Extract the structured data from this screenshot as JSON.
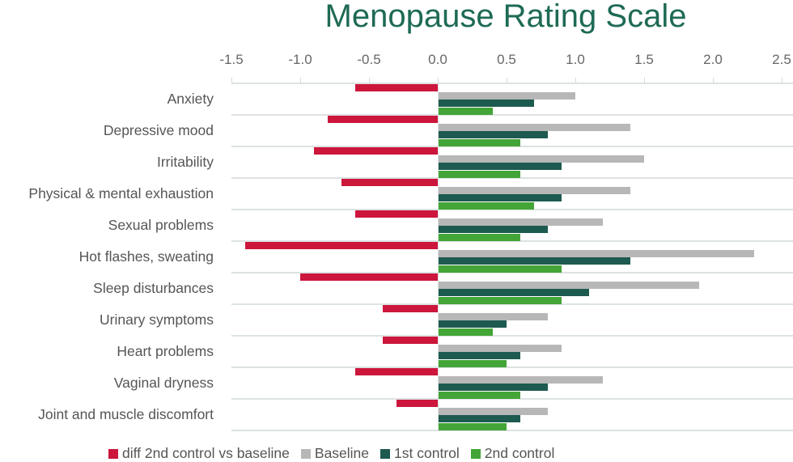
{
  "chart_data": {
    "type": "bar",
    "orientation": "horizontal",
    "title": "Menopause Rating Scale",
    "xlabel": "",
    "ylabel": "",
    "xlim": [
      -1.5,
      2.5
    ],
    "x_ticks": [
      "-1.5",
      "-1.0",
      "-0.5",
      "0.0",
      "0.5",
      "1.0",
      "1.5",
      "2.0",
      "2.5"
    ],
    "x_tick_values": [
      -1.5,
      -1.0,
      -0.5,
      0.0,
      0.5,
      1.0,
      1.5,
      2.0,
      2.5
    ],
    "axis_position": "top",
    "grid": "horizontal separators between categories",
    "legend_position": "bottom",
    "categories": [
      "Anxiety",
      "Depressive mood",
      "Irritability",
      "Physical & mental exhaustion",
      "Sexual problems",
      "Hot flashes, sweating",
      "Sleep disturbances",
      "Urinary symptoms",
      "Heart problems",
      "Vaginal dryness",
      "Joint and muscle discomfort"
    ],
    "series": [
      {
        "name": "diff 2nd control vs baseline",
        "color": "#cc163c",
        "values": [
          -0.6,
          -0.8,
          -0.9,
          -0.7,
          -0.6,
          -1.4,
          -1.0,
          -0.4,
          -0.4,
          -0.6,
          -0.3
        ]
      },
      {
        "name": "Baseline",
        "color": "#b7b7b7",
        "values": [
          1.0,
          1.4,
          1.5,
          1.4,
          1.2,
          2.3,
          1.9,
          0.8,
          0.9,
          1.2,
          0.8
        ]
      },
      {
        "name": "1st control",
        "color": "#1d5a4f",
        "values": [
          0.7,
          0.8,
          0.9,
          0.9,
          0.8,
          1.4,
          1.1,
          0.5,
          0.6,
          0.8,
          0.6
        ]
      },
      {
        "name": "2nd control",
        "color": "#43a537",
        "values": [
          0.4,
          0.6,
          0.6,
          0.7,
          0.6,
          0.9,
          0.9,
          0.4,
          0.5,
          0.6,
          0.5
        ]
      }
    ]
  },
  "title": "Menopause Rating Scale",
  "legend": [
    {
      "label": "diff 2nd control vs baseline",
      "color": "#cc163c"
    },
    {
      "label": "Baseline",
      "color": "#b7b7b7"
    },
    {
      "label": "1st control",
      "color": "#1d5a4f"
    },
    {
      "label": "2nd control",
      "color": "#43a537"
    }
  ]
}
